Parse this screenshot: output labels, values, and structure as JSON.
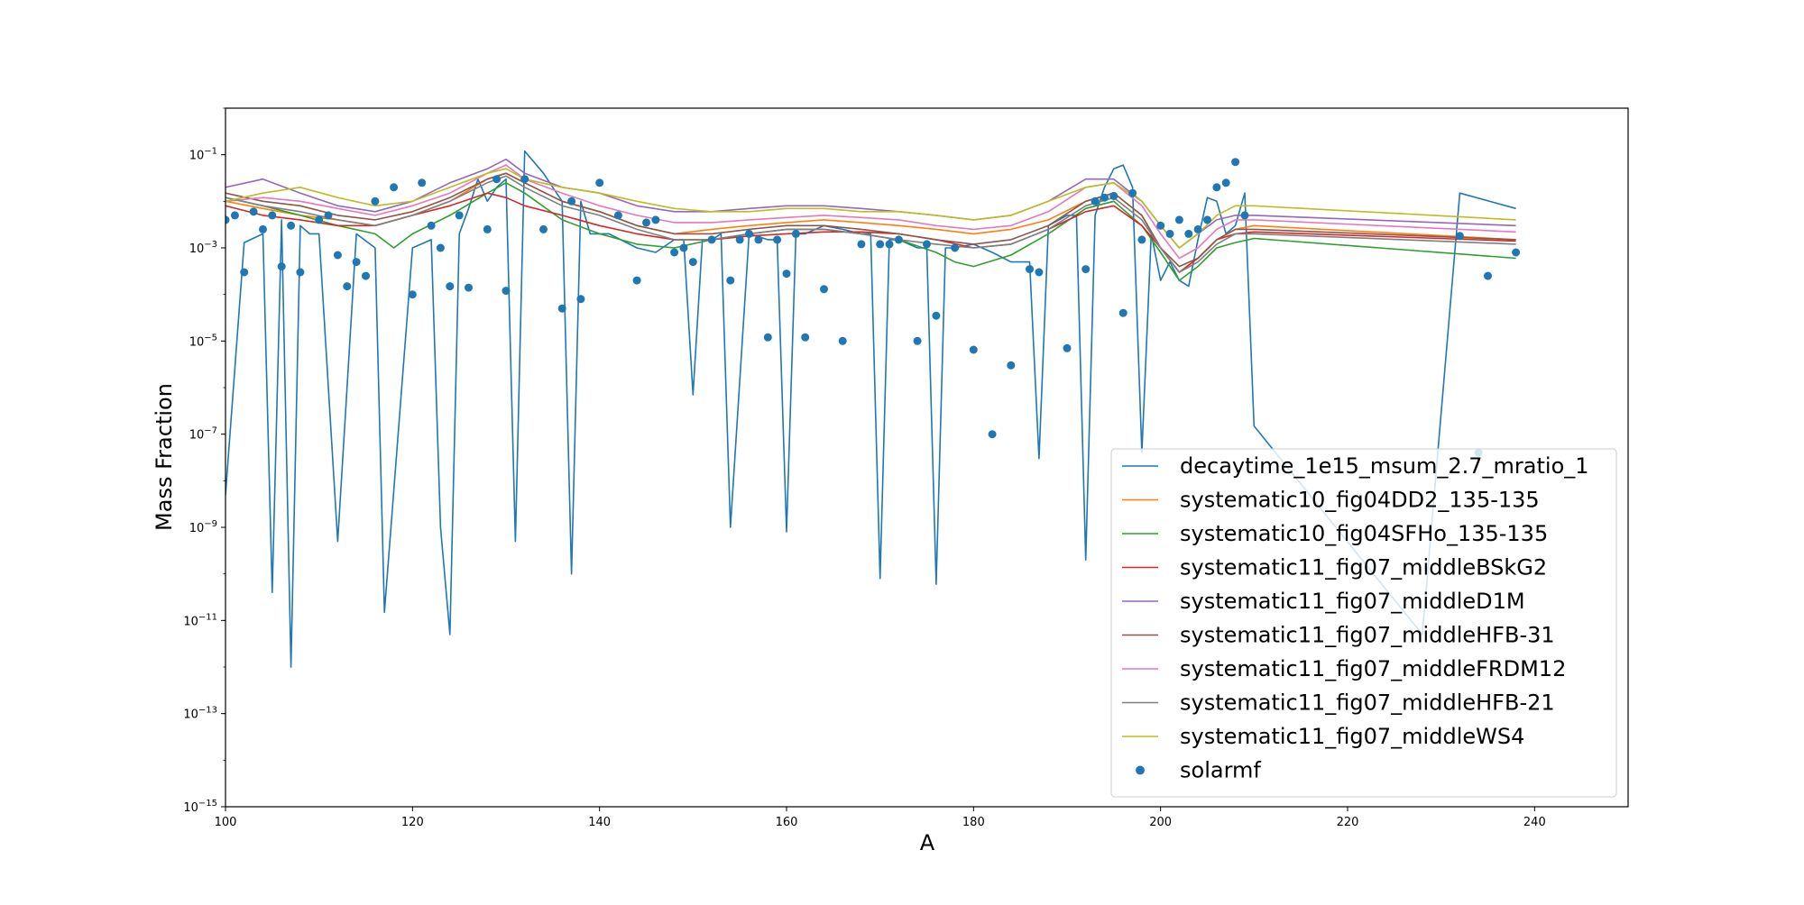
{
  "chart_data": {
    "type": "line",
    "title": "",
    "xlabel": "A",
    "ylabel": "Mass Fraction",
    "xlim": [
      100,
      250
    ],
    "ylim": [
      1e-15,
      1
    ],
    "yscale": "log",
    "xticks": [
      100,
      120,
      140,
      160,
      180,
      200,
      220,
      240
    ],
    "yticks": [
      {
        "value": 1e-15,
        "base": "10",
        "exp": "−15"
      },
      {
        "value": 1e-13,
        "base": "10",
        "exp": "−13"
      },
      {
        "value": 1e-11,
        "base": "10",
        "exp": "−11"
      },
      {
        "value": 1e-09,
        "base": "10",
        "exp": "−9"
      },
      {
        "value": 1e-07,
        "base": "10",
        "exp": "−7"
      },
      {
        "value": 1e-05,
        "base": "10",
        "exp": "−5"
      },
      {
        "value": 0.001,
        "base": "10",
        "exp": "−3"
      },
      {
        "value": 0.1,
        "base": "10",
        "exp": "−1"
      }
    ],
    "grid": false,
    "legend_position": "lower-right",
    "series": [
      {
        "name": "decaytime_1e15_msum_2.7_mratio_1",
        "color": "#1f77b4",
        "x": [
          100,
          102,
          104,
          105,
          106,
          107,
          108,
          109,
          110,
          112,
          114,
          116,
          117,
          120,
          122,
          123,
          124,
          125,
          126,
          127,
          128,
          129,
          130,
          131,
          132,
          134,
          135,
          136,
          137,
          138,
          139,
          140,
          141,
          142,
          144,
          146,
          148,
          149,
          150,
          151,
          152,
          153,
          154,
          156,
          158,
          159,
          160,
          161,
          162,
          164,
          166,
          168,
          169,
          170,
          171,
          172,
          174,
          175,
          176,
          177,
          178,
          180,
          182,
          184,
          186,
          187,
          188,
          190,
          191,
          192,
          193,
          194,
          195,
          196,
          197,
          198,
          199,
          200,
          201,
          202,
          203,
          204,
          205,
          206,
          207,
          208,
          209,
          210,
          228,
          232,
          238
        ],
        "y": [
          5e-09,
          0.0013,
          0.002,
          4e-11,
          0.004,
          1e-12,
          0.003,
          0.002,
          0.002,
          5e-10,
          0.002,
          0.001,
          1.5e-11,
          0.001,
          0.0015,
          1e-09,
          5e-12,
          0.002,
          0.007,
          0.03,
          0.01,
          0.02,
          0.03,
          5e-10,
          0.12,
          0.04,
          0.02,
          0.01,
          1e-10,
          0.01,
          0.002,
          0.002,
          0.002,
          0.0016,
          0.001,
          0.0008,
          0.0015,
          0.0015,
          7e-07,
          0.0015,
          0.0015,
          0.002,
          1e-09,
          0.002,
          0.0015,
          0.0015,
          8e-10,
          0.002,
          0.002,
          0.003,
          0.0025,
          0.002,
          0.002,
          8e-11,
          0.0015,
          0.0015,
          0.001,
          0.001,
          6e-11,
          0.001,
          0.001,
          0.0012,
          0.0008,
          0.0005,
          0.0005,
          3e-08,
          0.003,
          0.005,
          0.005,
          2e-10,
          0.005,
          0.02,
          0.05,
          0.06,
          0.02,
          4e-08,
          0.002,
          0.0002,
          0.0005,
          0.0002,
          0.00015,
          0.0015,
          0.012,
          0.01,
          0.002,
          0.003,
          0.015,
          1.5e-07,
          5e-12,
          0.015,
          0.007
        ]
      },
      {
        "name": "systematic10_fig04DD2_135-135",
        "color": "#ff7f0e",
        "x": [
          100,
          104,
          108,
          112,
          116,
          120,
          124,
          128,
          130,
          132,
          136,
          140,
          144,
          148,
          152,
          156,
          160,
          164,
          168,
          172,
          176,
          180,
          184,
          188,
          192,
          195,
          198,
          200,
          202,
          204,
          206,
          208,
          210,
          238
        ],
        "y": [
          0.01,
          0.007,
          0.005,
          0.004,
          0.003,
          0.005,
          0.01,
          0.03,
          0.04,
          0.025,
          0.01,
          0.006,
          0.003,
          0.002,
          0.0025,
          0.003,
          0.0035,
          0.004,
          0.0035,
          0.003,
          0.0025,
          0.002,
          0.0025,
          0.004,
          0.01,
          0.015,
          0.005,
          0.001,
          0.0003,
          0.0006,
          0.0015,
          0.0025,
          0.003,
          0.0015
        ]
      },
      {
        "name": "systematic10_fig04SFHo_135-135",
        "color": "#2ca02c",
        "x": [
          100,
          104,
          108,
          112,
          116,
          118,
          120,
          124,
          128,
          130,
          132,
          136,
          140,
          144,
          148,
          152,
          156,
          160,
          164,
          168,
          172,
          176,
          178,
          180,
          184,
          188,
          192,
          195,
          198,
          200,
          202,
          204,
          206,
          208,
          210,
          238
        ],
        "y": [
          0.012,
          0.008,
          0.005,
          0.003,
          0.002,
          0.001,
          0.002,
          0.005,
          0.015,
          0.025,
          0.015,
          0.004,
          0.002,
          0.0012,
          0.001,
          0.0015,
          0.002,
          0.0025,
          0.0025,
          0.002,
          0.0015,
          0.0008,
          0.0005,
          0.0004,
          0.0007,
          0.002,
          0.007,
          0.01,
          0.003,
          0.0008,
          0.0002,
          0.0004,
          0.001,
          0.0013,
          0.0016,
          0.0006
        ]
      },
      {
        "name": "systematic11_fig07_middleBSkG2",
        "color": "#d62728",
        "x": [
          100,
          104,
          108,
          112,
          116,
          120,
          124,
          128,
          130,
          132,
          136,
          140,
          144,
          148,
          152,
          156,
          160,
          164,
          168,
          172,
          176,
          180,
          184,
          188,
          192,
          195,
          198,
          200,
          202,
          204,
          206,
          208,
          210,
          238
        ],
        "y": [
          0.008,
          0.005,
          0.004,
          0.003,
          0.003,
          0.005,
          0.008,
          0.015,
          0.012,
          0.008,
          0.005,
          0.003,
          0.002,
          0.0015,
          0.0015,
          0.0018,
          0.002,
          0.0022,
          0.0022,
          0.002,
          0.0015,
          0.001,
          0.0012,
          0.0025,
          0.006,
          0.008,
          0.003,
          0.001,
          0.0003,
          0.0006,
          0.0015,
          0.002,
          0.0022,
          0.0014
        ]
      },
      {
        "name": "systematic11_fig07_middleD1M",
        "color": "#9467bd",
        "x": [
          100,
          104,
          108,
          112,
          116,
          120,
          124,
          128,
          130,
          132,
          136,
          140,
          144,
          148,
          152,
          156,
          160,
          164,
          168,
          172,
          176,
          180,
          184,
          188,
          192,
          195,
          198,
          200,
          202,
          204,
          206,
          208,
          210,
          238
        ],
        "y": [
          0.02,
          0.03,
          0.015,
          0.008,
          0.006,
          0.01,
          0.025,
          0.05,
          0.08,
          0.04,
          0.02,
          0.015,
          0.008,
          0.006,
          0.006,
          0.007,
          0.008,
          0.008,
          0.007,
          0.006,
          0.005,
          0.004,
          0.005,
          0.01,
          0.03,
          0.03,
          0.01,
          0.003,
          0.001,
          0.002,
          0.004,
          0.005,
          0.005,
          0.003
        ]
      },
      {
        "name": "systematic11_fig07_middleHFB-31",
        "color": "#8c564b",
        "x": [
          100,
          104,
          108,
          112,
          116,
          120,
          124,
          128,
          130,
          132,
          136,
          140,
          144,
          148,
          152,
          156,
          160,
          164,
          168,
          172,
          176,
          180,
          184,
          188,
          192,
          195,
          198,
          200,
          202,
          204,
          206,
          208,
          210,
          238
        ],
        "y": [
          0.015,
          0.01,
          0.008,
          0.005,
          0.004,
          0.006,
          0.012,
          0.03,
          0.04,
          0.025,
          0.01,
          0.006,
          0.003,
          0.002,
          0.002,
          0.0025,
          0.003,
          0.003,
          0.0025,
          0.002,
          0.0015,
          0.0012,
          0.0015,
          0.003,
          0.01,
          0.015,
          0.005,
          0.001,
          0.0004,
          0.0006,
          0.0015,
          0.0025,
          0.0025,
          0.0015
        ]
      },
      {
        "name": "systematic11_fig07_middleFRDM12",
        "color": "#e377c2",
        "x": [
          100,
          104,
          108,
          112,
          116,
          120,
          124,
          128,
          130,
          132,
          136,
          140,
          144,
          148,
          152,
          156,
          160,
          164,
          168,
          172,
          176,
          180,
          184,
          188,
          192,
          195,
          198,
          200,
          202,
          204,
          206,
          208,
          210,
          238
        ],
        "y": [
          0.01,
          0.012,
          0.01,
          0.007,
          0.005,
          0.008,
          0.015,
          0.04,
          0.06,
          0.03,
          0.015,
          0.008,
          0.005,
          0.0035,
          0.0035,
          0.004,
          0.0045,
          0.005,
          0.0045,
          0.004,
          0.003,
          0.0025,
          0.003,
          0.006,
          0.02,
          0.025,
          0.008,
          0.002,
          0.0006,
          0.001,
          0.0025,
          0.004,
          0.004,
          0.0022
        ]
      },
      {
        "name": "systematic11_fig07_middleHFB-21",
        "color": "#7f7f7f",
        "x": [
          100,
          104,
          108,
          112,
          116,
          120,
          124,
          128,
          130,
          132,
          136,
          140,
          144,
          148,
          152,
          156,
          160,
          164,
          168,
          172,
          176,
          180,
          184,
          188,
          192,
          195,
          198,
          200,
          202,
          204,
          206,
          208,
          210,
          238
        ],
        "y": [
          0.012,
          0.008,
          0.006,
          0.004,
          0.003,
          0.005,
          0.01,
          0.025,
          0.035,
          0.02,
          0.008,
          0.005,
          0.0025,
          0.0015,
          0.0015,
          0.002,
          0.0025,
          0.0025,
          0.002,
          0.0015,
          0.0012,
          0.001,
          0.0012,
          0.0025,
          0.008,
          0.012,
          0.004,
          0.001,
          0.0003,
          0.0005,
          0.0012,
          0.002,
          0.002,
          0.0012
        ]
      },
      {
        "name": "systematic11_fig07_middleWS4",
        "color": "#bcbd22",
        "x": [
          100,
          104,
          108,
          112,
          116,
          120,
          124,
          128,
          130,
          132,
          136,
          140,
          144,
          148,
          152,
          156,
          160,
          164,
          168,
          172,
          176,
          180,
          184,
          188,
          192,
          195,
          198,
          200,
          202,
          204,
          206,
          208,
          210,
          238
        ],
        "y": [
          0.01,
          0.015,
          0.02,
          0.012,
          0.008,
          0.01,
          0.02,
          0.04,
          0.05,
          0.03,
          0.02,
          0.015,
          0.01,
          0.007,
          0.006,
          0.006,
          0.007,
          0.007,
          0.006,
          0.006,
          0.005,
          0.004,
          0.005,
          0.01,
          0.02,
          0.025,
          0.01,
          0.003,
          0.001,
          0.002,
          0.005,
          0.008,
          0.008,
          0.004
        ]
      }
    ],
    "scatter": {
      "name": "solarmf",
      "color": "#1f77b4",
      "x": [
        100,
        101,
        102,
        103,
        104,
        105,
        106,
        107,
        108,
        110,
        111,
        112,
        113,
        114,
        115,
        116,
        118,
        120,
        121,
        122,
        123,
        124,
        125,
        126,
        128,
        129,
        130,
        132,
        134,
        136,
        137,
        138,
        140,
        142,
        144,
        145,
        146,
        148,
        149,
        150,
        152,
        154,
        155,
        156,
        157,
        158,
        159,
        160,
        161,
        162,
        164,
        166,
        168,
        170,
        171,
        172,
        174,
        175,
        176,
        178,
        180,
        182,
        184,
        186,
        187,
        190,
        192,
        193,
        194,
        195,
        196,
        197,
        198,
        200,
        201,
        202,
        203,
        204,
        205,
        206,
        207,
        208,
        209,
        232,
        234,
        235,
        238
      ],
      "y": [
        0.004,
        0.005,
        0.0003,
        0.006,
        0.0025,
        0.005,
        0.0004,
        0.003,
        0.0003,
        0.004,
        0.005,
        0.0007,
        0.00015,
        0.0005,
        0.00025,
        0.01,
        0.02,
        0.0001,
        0.025,
        0.003,
        0.001,
        0.00015,
        0.005,
        0.00014,
        0.0025,
        0.03,
        0.00012,
        0.03,
        0.0025,
        5e-05,
        0.01,
        8e-05,
        0.025,
        0.005,
        0.0002,
        0.0035,
        0.004,
        0.0008,
        0.001,
        0.0005,
        0.0015,
        0.0002,
        0.0015,
        0.002,
        0.0015,
        1.2e-05,
        0.0015,
        0.00028,
        0.002,
        1.2e-05,
        0.00013,
        1e-05,
        0.0012,
        0.0012,
        0.0012,
        0.0015,
        1e-05,
        0.0012,
        3.5e-05,
        0.001,
        6.5e-06,
        1e-07,
        3e-06,
        0.00035,
        0.0003,
        7e-06,
        0.00035,
        0.01,
        0.012,
        0.013,
        4e-05,
        0.015,
        0.0015,
        0.003,
        0.002,
        0.004,
        0.002,
        0.0025,
        0.004,
        0.02,
        0.025,
        0.07,
        0.005,
        0.0018,
        4e-08,
        0.00025,
        0.0008
      ]
    }
  }
}
